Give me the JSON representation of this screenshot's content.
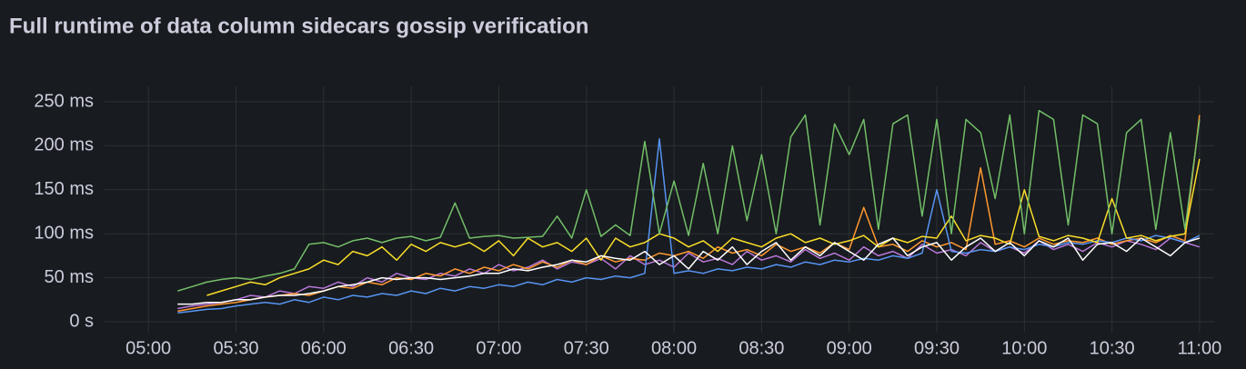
{
  "chart_data": {
    "type": "line",
    "title": "Full runtime of data column sidecars gossip verification",
    "x": [
      310,
      315,
      320,
      325,
      330,
      335,
      340,
      345,
      350,
      355,
      360,
      365,
      370,
      375,
      380,
      385,
      390,
      395,
      400,
      405,
      410,
      415,
      420,
      425,
      430,
      435,
      440,
      445,
      450,
      455,
      460,
      465,
      470,
      475,
      480,
      485,
      490,
      495,
      500,
      505,
      510,
      515,
      520,
      525,
      530,
      535,
      540,
      545,
      550,
      555,
      560,
      565,
      570,
      575,
      580,
      585,
      590,
      595,
      600,
      605,
      610,
      615,
      620,
      625,
      630,
      635,
      640,
      645,
      650,
      655,
      660
    ],
    "xlim": [
      285,
      665
    ],
    "xticks": [
      {
        "value": 300,
        "label": "05:00"
      },
      {
        "value": 330,
        "label": "05:30"
      },
      {
        "value": 360,
        "label": "06:00"
      },
      {
        "value": 390,
        "label": "06:30"
      },
      {
        "value": 420,
        "label": "07:00"
      },
      {
        "value": 450,
        "label": "07:30"
      },
      {
        "value": 480,
        "label": "08:00"
      },
      {
        "value": 510,
        "label": "08:30"
      },
      {
        "value": 540,
        "label": "09:00"
      },
      {
        "value": 570,
        "label": "09:30"
      },
      {
        "value": 600,
        "label": "10:00"
      },
      {
        "value": 630,
        "label": "10:30"
      },
      {
        "value": 660,
        "label": "11:00"
      }
    ],
    "ylim": [
      0,
      250
    ],
    "yticks": [
      {
        "value": 0,
        "label": "0 s"
      },
      {
        "value": 50,
        "label": "50 ms"
      },
      {
        "value": 100,
        "label": "100 ms"
      },
      {
        "value": 150,
        "label": "150 ms"
      },
      {
        "value": 200,
        "label": "200 ms"
      },
      {
        "value": 250,
        "label": "250 ms"
      }
    ],
    "grid": true,
    "series": [
      {
        "color": "#b877d9",
        "values": [
          15,
          18,
          20,
          22,
          25,
          30,
          28,
          35,
          32,
          40,
          38,
          45,
          40,
          50,
          45,
          55,
          50,
          48,
          55,
          52,
          60,
          55,
          65,
          58,
          62,
          70,
          60,
          68,
          65,
          72,
          60,
          75,
          65,
          70,
          62,
          78,
          68,
          72,
          65,
          80,
          70,
          75,
          68,
          82,
          72,
          78,
          70,
          85,
          75,
          80,
          72,
          88,
          78,
          82,
          75,
          90,
          80,
          85,
          78,
          92,
          82,
          88,
          80,
          90,
          85,
          92,
          88,
          82,
          95,
          90,
          85
        ]
      },
      {
        "color": "#ff9830",
        "values": [
          12,
          15,
          18,
          20,
          22,
          25,
          28,
          30,
          32,
          30,
          35,
          40,
          38,
          45,
          42,
          50,
          48,
          55,
          52,
          60,
          55,
          62,
          58,
          65,
          60,
          68,
          62,
          70,
          65,
          75,
          68,
          72,
          70,
          78,
          75,
          80,
          72,
          85,
          78,
          82,
          75,
          88,
          80,
          85,
          78,
          90,
          82,
          130,
          85,
          88,
          80,
          92,
          85,
          90,
          82,
          175,
          88,
          92,
          85,
          95,
          88,
          92,
          90,
          95,
          88,
          92,
          95,
          90,
          98,
          92,
          235
        ]
      },
      {
        "color": "#5794f2",
        "values": [
          10,
          12,
          14,
          15,
          18,
          20,
          22,
          20,
          25,
          22,
          28,
          25,
          30,
          28,
          32,
          30,
          35,
          32,
          38,
          35,
          40,
          38,
          42,
          40,
          45,
          42,
          48,
          45,
          50,
          48,
          52,
          50,
          55,
          208,
          55,
          58,
          55,
          60,
          58,
          62,
          60,
          65,
          62,
          68,
          65,
          70,
          68,
          72,
          70,
          75,
          72,
          78,
          150,
          80,
          78,
          82,
          80,
          85,
          82,
          88,
          85,
          90,
          88,
          92,
          90,
          95,
          92,
          98,
          95,
          90,
          98
        ]
      },
      {
        "color": "#fade2a",
        "values": [
          null,
          null,
          30,
          35,
          40,
          45,
          42,
          50,
          55,
          60,
          70,
          65,
          80,
          75,
          85,
          70,
          88,
          80,
          90,
          85,
          90,
          80,
          92,
          75,
          95,
          85,
          90,
          80,
          95,
          70,
          95,
          85,
          90,
          100,
          95,
          85,
          92,
          80,
          95,
          90,
          85,
          95,
          100,
          90,
          95,
          88,
          92,
          98,
          85,
          95,
          90,
          97,
          95,
          120,
          92,
          98,
          95,
          88,
          150,
          97,
          92,
          98,
          95,
          90,
          140,
          95,
          98,
          92,
          97,
          100,
          185
        ]
      },
      {
        "color": "#73bf69",
        "values": [
          35,
          40,
          45,
          48,
          50,
          48,
          52,
          55,
          60,
          88,
          90,
          85,
          92,
          95,
          90,
          95,
          97,
          92,
          96,
          135,
          95,
          97,
          98,
          95,
          96,
          97,
          120,
          95,
          150,
          97,
          110,
          98,
          205,
          100,
          160,
          98,
          180,
          100,
          200,
          115,
          190,
          100,
          210,
          235,
          110,
          225,
          190,
          230,
          105,
          225,
          235,
          120,
          230,
          100,
          230,
          215,
          140,
          235,
          100,
          240,
          230,
          110,
          235,
          225,
          100,
          215,
          230,
          105,
          215,
          105,
          230
        ]
      },
      {
        "color": "#ffffff",
        "values": [
          20,
          20,
          22,
          22,
          25,
          25,
          28,
          30,
          30,
          32,
          35,
          40,
          42,
          45,
          50,
          48,
          50,
          50,
          48,
          50,
          52,
          55,
          55,
          60,
          58,
          62,
          65,
          70,
          68,
          75,
          72,
          70,
          80,
          65,
          75,
          60,
          80,
          70,
          85,
          65,
          80,
          90,
          70,
          85,
          75,
          90,
          80,
          70,
          88,
          95,
          75,
          85,
          90,
          70,
          85,
          95,
          80,
          90,
          75,
          92,
          85,
          95,
          70,
          88,
          90,
          80,
          95,
          85,
          75,
          90,
          95
        ]
      }
    ]
  }
}
